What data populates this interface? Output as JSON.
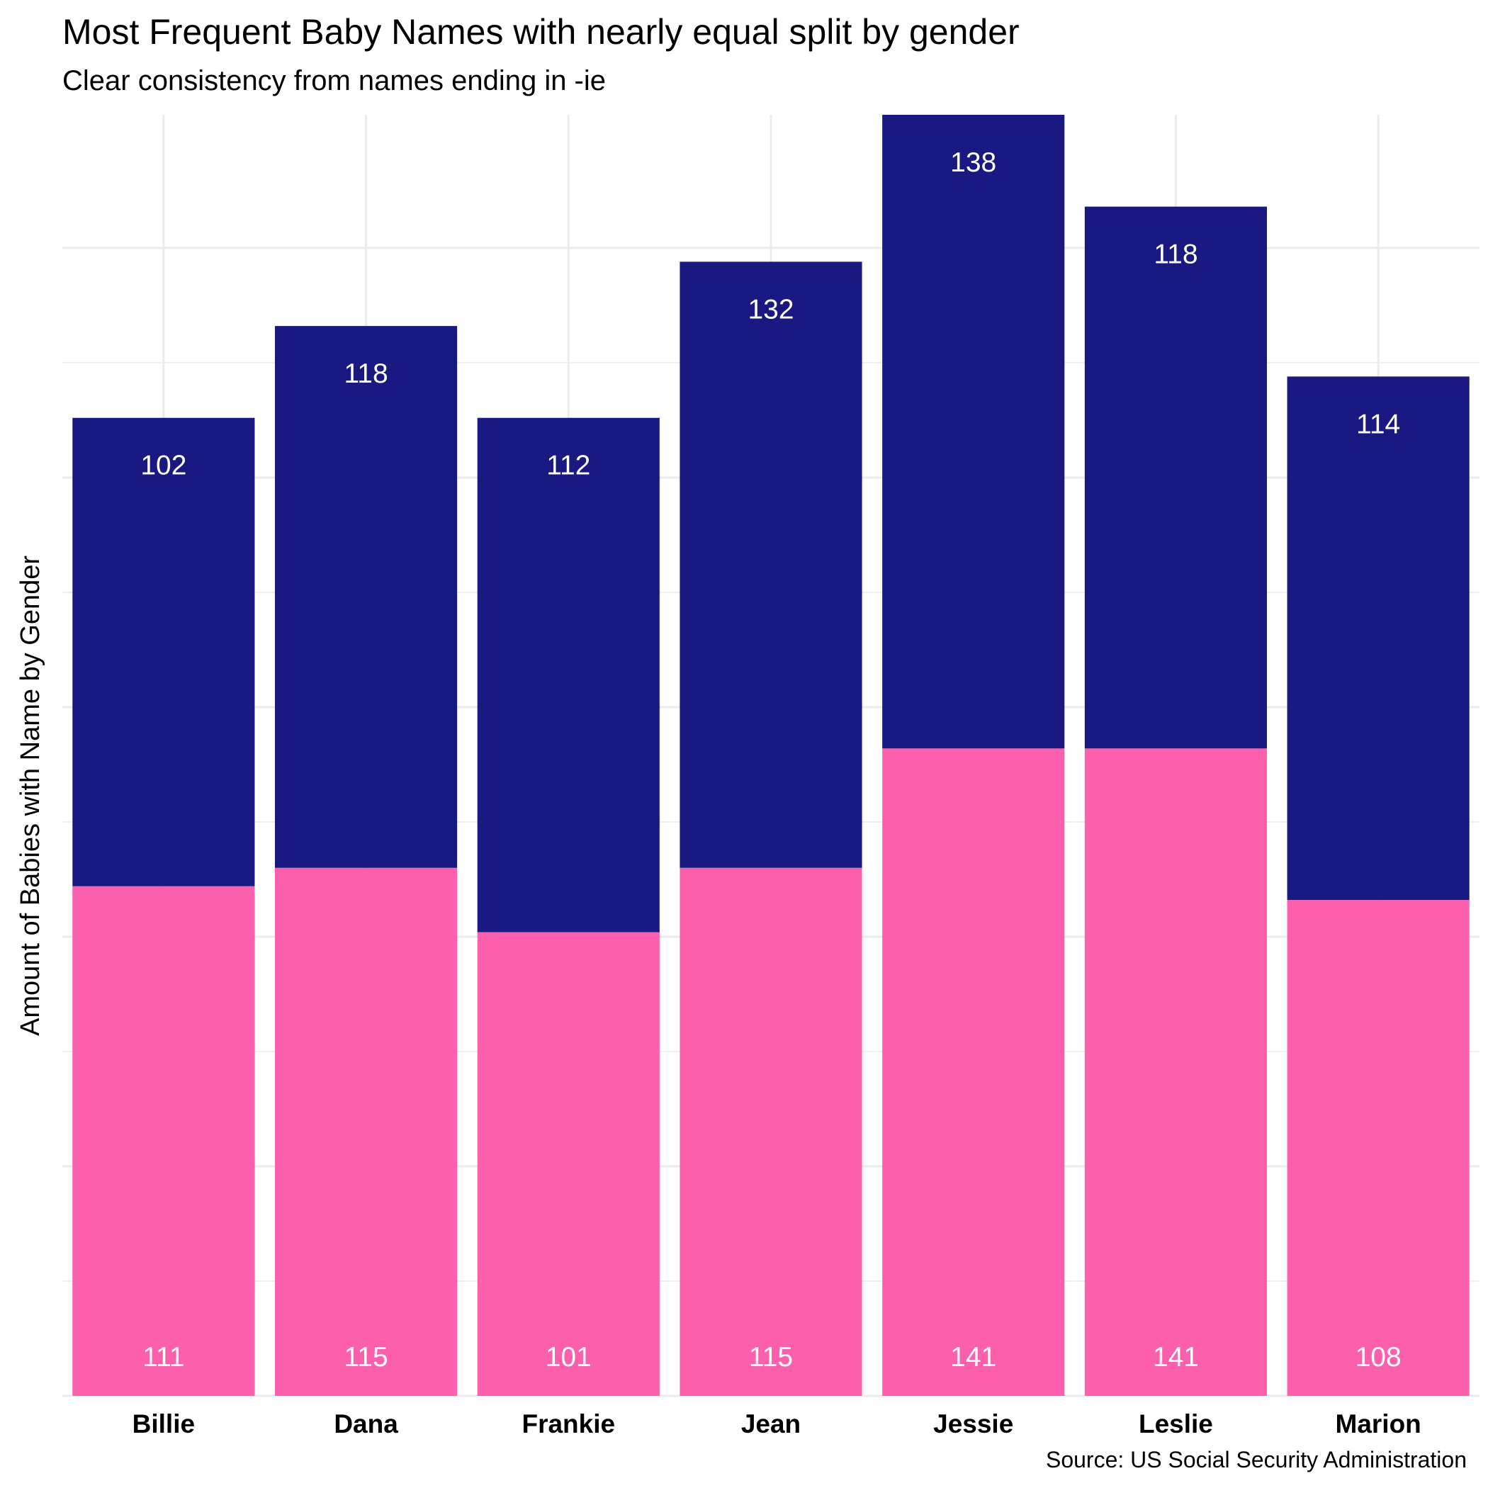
{
  "chart_data": {
    "type": "bar",
    "stacked": true,
    "title": "Most Frequent Baby Names with nearly equal split by gender",
    "subtitle": "Clear consistency from names ending in -ie",
    "caption": "Source: US Social Security Administration",
    "xlabel": "",
    "ylabel": "Amount of Babies with Name by Gender",
    "categories": [
      "Billie",
      "Dana",
      "Frankie",
      "Jean",
      "Jessie",
      "Leslie",
      "Marion"
    ],
    "series": [
      {
        "color": "#fc5fac",
        "values": [
          111,
          115,
          101,
          115,
          141,
          141,
          108
        ]
      },
      {
        "color": "#191981",
        "values": [
          102,
          118,
          112,
          132,
          138,
          118,
          114
        ]
      }
    ],
    "ylim": [
      0,
      279
    ],
    "grid": true,
    "legend": "none"
  }
}
